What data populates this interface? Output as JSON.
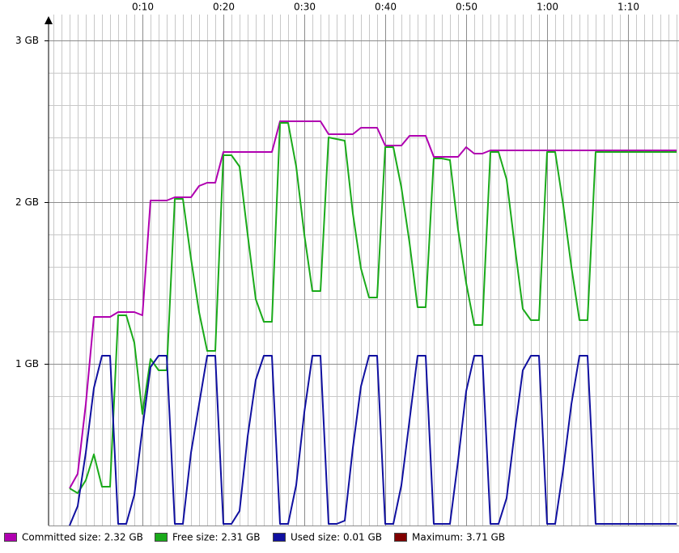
{
  "chart_data": {
    "type": "line",
    "x": [
      1,
      2,
      3,
      4,
      5,
      6,
      7,
      8,
      9,
      10,
      11,
      12,
      13,
      14,
      15,
      16,
      17,
      18,
      19,
      20,
      21,
      22,
      23,
      24,
      25,
      26,
      27,
      28,
      29,
      30,
      31,
      32,
      33,
      34,
      35,
      36,
      37,
      38,
      39,
      40,
      41,
      42,
      43,
      44,
      45,
      46,
      47,
      48,
      49,
      50,
      51,
      52,
      53,
      54,
      55,
      56,
      57,
      58,
      59,
      60,
      61,
      62,
      63,
      64,
      65,
      66,
      67,
      68,
      69,
      70,
      71,
      72,
      73,
      74,
      75,
      76
    ],
    "series": [
      {
        "name": "Committed size: 2.32 GB",
        "color": "#b000b0",
        "values": [
          0.23,
          0.32,
          0.75,
          1.29,
          1.29,
          1.29,
          1.32,
          1.32,
          1.32,
          1.3,
          2.01,
          2.01,
          2.01,
          2.03,
          2.03,
          2.03,
          2.1,
          2.12,
          2.12,
          2.31,
          2.31,
          2.31,
          2.31,
          2.31,
          2.31,
          2.31,
          2.5,
          2.5,
          2.5,
          2.5,
          2.5,
          2.5,
          2.42,
          2.42,
          2.42,
          2.42,
          2.46,
          2.46,
          2.46,
          2.35,
          2.35,
          2.35,
          2.41,
          2.41,
          2.41,
          2.28,
          2.28,
          2.28,
          2.28,
          2.34,
          2.3,
          2.3,
          2.32,
          2.32,
          2.32,
          2.32,
          2.32,
          2.32,
          2.32,
          2.32,
          2.32,
          2.32,
          2.32,
          2.32,
          2.32,
          2.32,
          2.32,
          2.32,
          2.32,
          2.32,
          2.32,
          2.32,
          2.32,
          2.32,
          2.32,
          2.32
        ]
      },
      {
        "name": "Free size: 2.31 GB",
        "color": "#1aaa1a",
        "values": [
          0.23,
          0.2,
          0.28,
          0.44,
          0.24,
          0.24,
          1.3,
          1.3,
          1.13,
          0.69,
          1.03,
          0.96,
          0.96,
          2.02,
          2.02,
          1.65,
          1.32,
          1.08,
          1.08,
          2.29,
          2.29,
          2.22,
          1.8,
          1.4,
          1.26,
          1.26,
          2.49,
          2.49,
          2.22,
          1.8,
          1.45,
          1.45,
          2.4,
          2.39,
          2.38,
          1.93,
          1.59,
          1.41,
          1.41,
          2.34,
          2.34,
          2.09,
          1.75,
          1.35,
          1.35,
          2.27,
          2.27,
          2.26,
          1.83,
          1.5,
          1.24,
          1.24,
          2.31,
          2.31,
          2.14,
          1.73,
          1.34,
          1.27,
          1.27,
          2.31,
          2.31,
          1.98,
          1.6,
          1.27,
          1.27,
          2.31,
          2.31,
          2.31,
          2.31,
          2.31,
          2.31,
          2.31,
          2.31,
          2.31,
          2.31,
          2.31
        ]
      },
      {
        "name": "Used size: 0.01 GB",
        "color": "#1010a0",
        "values": [
          0.0,
          0.12,
          0.45,
          0.85,
          1.05,
          1.05,
          0.01,
          0.01,
          0.19,
          0.6,
          0.98,
          1.05,
          1.05,
          0.01,
          0.01,
          0.45,
          0.75,
          1.05,
          1.05,
          0.01,
          0.01,
          0.09,
          0.55,
          0.9,
          1.05,
          1.05,
          0.01,
          0.01,
          0.25,
          0.7,
          1.05,
          1.05,
          0.01,
          0.01,
          0.03,
          0.48,
          0.86,
          1.05,
          1.05,
          0.01,
          0.01,
          0.25,
          0.65,
          1.05,
          1.05,
          0.01,
          0.01,
          0.01,
          0.4,
          0.83,
          1.05,
          1.05,
          0.01,
          0.01,
          0.17,
          0.58,
          0.96,
          1.05,
          1.05,
          0.01,
          0.01,
          0.35,
          0.75,
          1.05,
          1.05,
          0.01,
          0.01,
          0.01,
          0.01,
          0.01,
          0.01,
          0.01,
          0.01,
          0.01,
          0.01,
          0.01
        ]
      },
      {
        "name": "Maximum: 3.71 GB",
        "color": "#800000"
      }
    ],
    "xlim": [
      -1.6,
      76.3
    ],
    "ylim": [
      0,
      3.16
    ],
    "xticks": [
      {
        "value": 10,
        "label": "0:10"
      },
      {
        "value": 20,
        "label": "0:20"
      },
      {
        "value": 30,
        "label": "0:30"
      },
      {
        "value": 40,
        "label": "0:40"
      },
      {
        "value": 50,
        "label": "0:50"
      },
      {
        "value": 60,
        "label": "1:00"
      },
      {
        "value": 70,
        "label": "1:10"
      }
    ],
    "yticks": [
      {
        "value": 1,
        "label": "1 GB"
      },
      {
        "value": 2,
        "label": "2 GB"
      },
      {
        "value": 3,
        "label": "3 GB"
      }
    ],
    "x_minor_step": 1,
    "y_minor_step": 0.2,
    "grid": true,
    "legend": "bottom"
  }
}
